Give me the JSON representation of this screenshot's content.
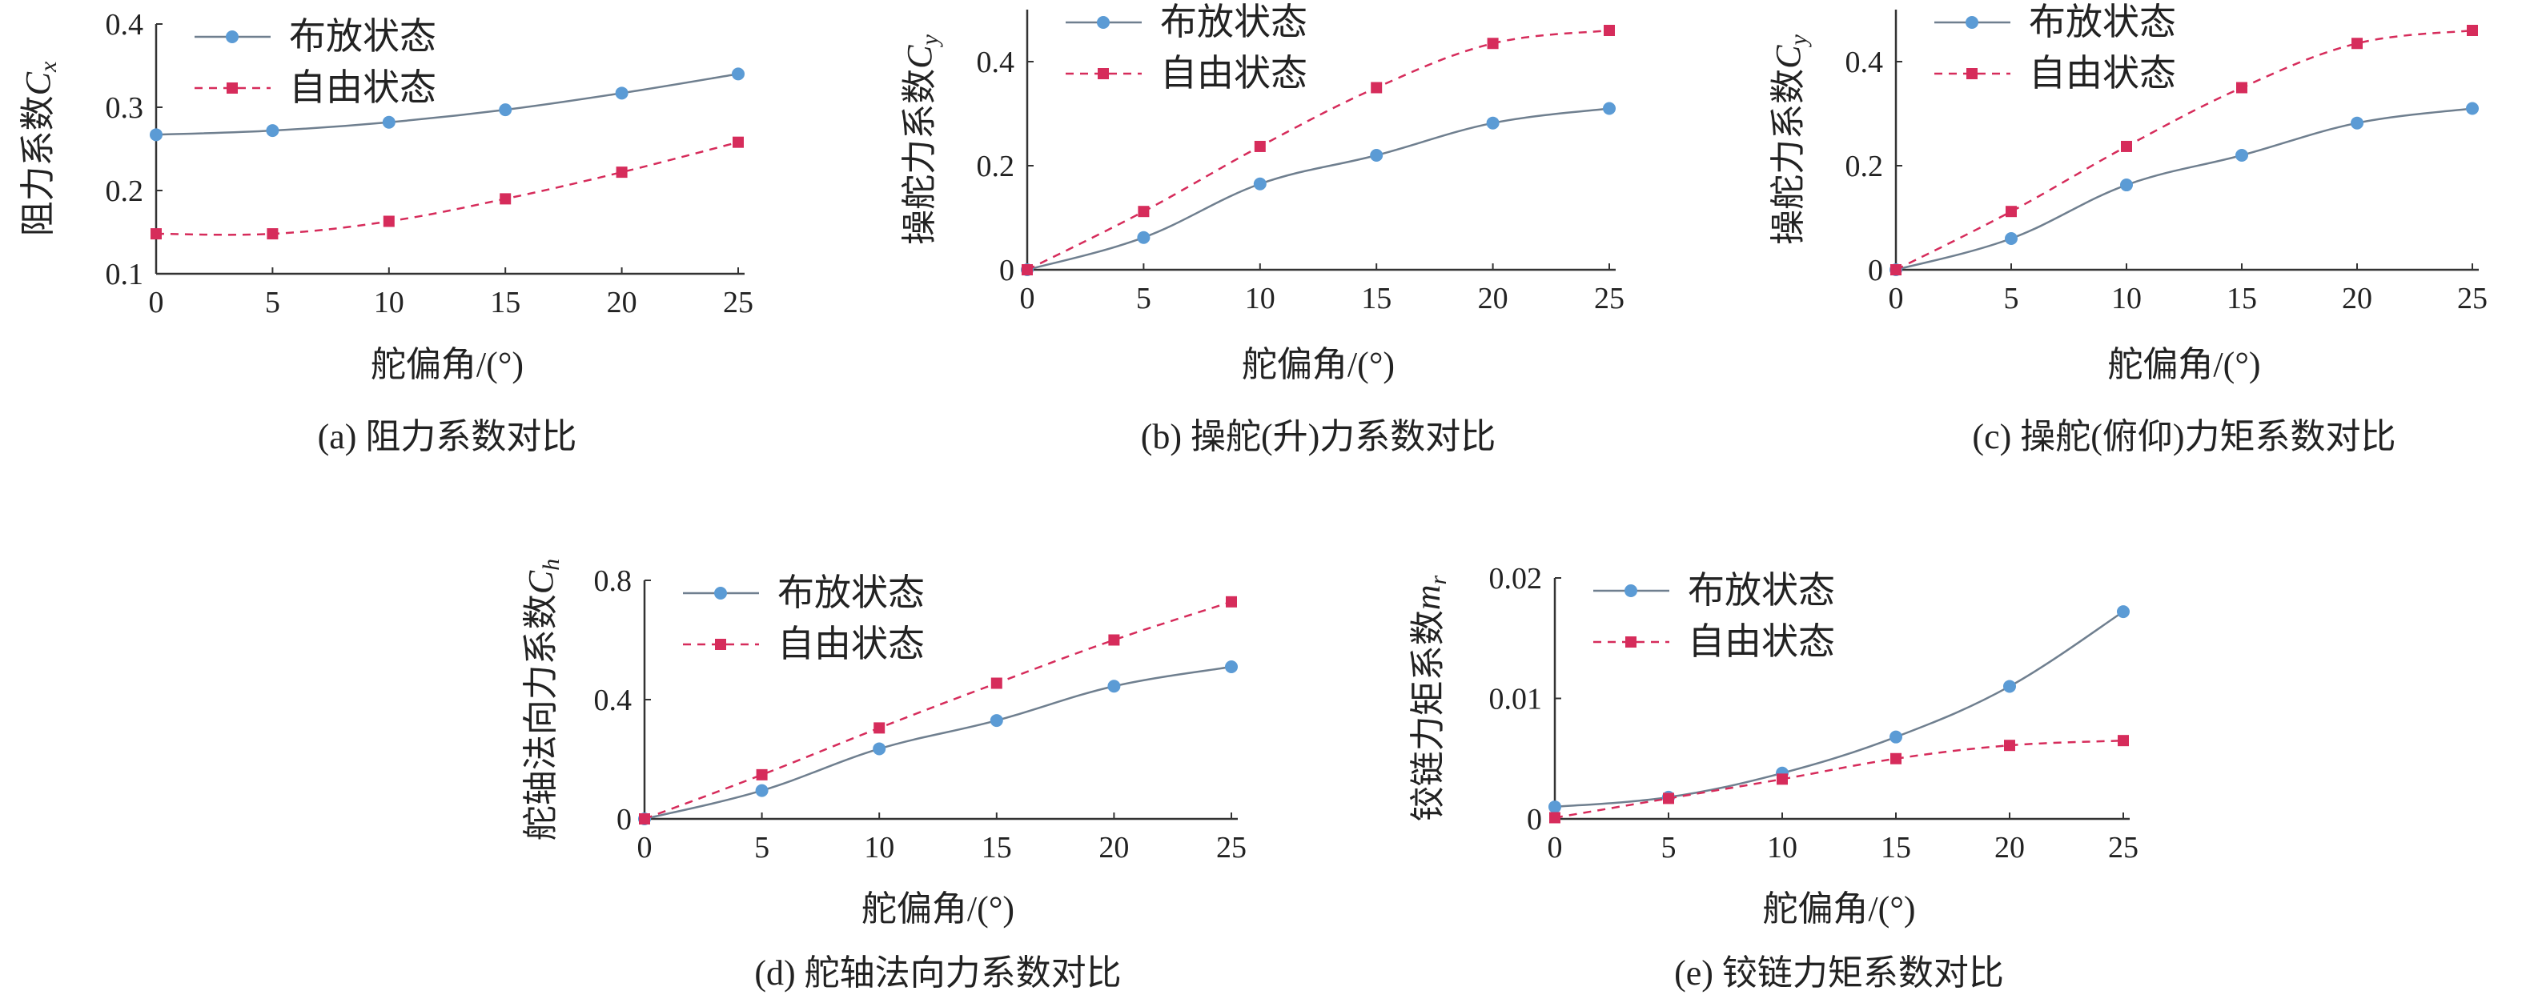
{
  "figure": {
    "xlabel": "舵偏角/(°)",
    "legend": [
      "布放状态",
      "自由状态"
    ],
    "colors": {
      "deployed": "#5b9bd5",
      "free": "#d62c5b",
      "axis": "#333333",
      "curve_deployed": "#6f7f8f"
    }
  },
  "chart_data": [
    {
      "type": "line",
      "caption": "(a) 阻力系数对比",
      "ylabel_text": "阻力系数",
      "ylabel_symbol": "C",
      "ylabel_sub": "x",
      "xlabel": "舵偏角/(°)",
      "x": [
        0,
        5,
        10,
        15,
        20,
        25
      ],
      "xticks": [
        "0",
        "5",
        "10",
        "15",
        "20",
        "25"
      ],
      "ylim": [
        0.1,
        0.4
      ],
      "yticks": [
        "0.1",
        "0.2",
        "0.3",
        "0.4"
      ],
      "legend_position": "top-left",
      "series": [
        {
          "name": "布放状态",
          "values": [
            0.267,
            0.272,
            0.282,
            0.297,
            0.317,
            0.34
          ]
        },
        {
          "name": "自由状态",
          "values": [
            0.148,
            0.148,
            0.163,
            0.19,
            0.222,
            0.258
          ]
        }
      ]
    },
    {
      "type": "line",
      "caption": "(b) 操舵(升)力系数对比",
      "ylabel_text": "操舵力系数",
      "ylabel_symbol": "C",
      "ylabel_sub": "y",
      "xlabel": "舵偏角/(°)",
      "x": [
        0,
        5,
        10,
        15,
        20,
        25
      ],
      "xticks": [
        "0",
        "5",
        "10",
        "15",
        "20",
        "25"
      ],
      "ylim": [
        0,
        0.5
      ],
      "yticks": [
        "0",
        "0.2",
        "0.4"
      ],
      "legend_position": "top-left",
      "series": [
        {
          "name": "布放状态",
          "values": [
            0,
            0.062,
            0.165,
            0.22,
            0.282,
            0.31
          ]
        },
        {
          "name": "自由状态",
          "values": [
            0,
            0.112,
            0.237,
            0.35,
            0.435,
            0.46
          ]
        }
      ]
    },
    {
      "type": "line",
      "caption": "(c) 操舵(俯仰)力矩系数对比",
      "ylabel_text": "操舵力系数",
      "ylabel_symbol": "C",
      "ylabel_sub": "y",
      "xlabel": "舵偏角/(°)",
      "x": [
        0,
        5,
        10,
        15,
        20,
        25
      ],
      "xticks": [
        "0",
        "5",
        "10",
        "15",
        "20",
        "25"
      ],
      "ylim": [
        0,
        0.5
      ],
      "yticks": [
        "0",
        "0.2",
        "0.4"
      ],
      "legend_position": "top-left",
      "series": [
        {
          "name": "布放状态",
          "values": [
            0,
            0.06,
            0.163,
            0.22,
            0.282,
            0.31
          ]
        },
        {
          "name": "自由状态",
          "values": [
            0,
            0.112,
            0.237,
            0.35,
            0.435,
            0.46
          ]
        }
      ]
    },
    {
      "type": "line",
      "caption": "(d) 舵轴法向力系数对比",
      "ylabel_text": "舵轴法向力系数",
      "ylabel_symbol": "C",
      "ylabel_sub": "h",
      "xlabel": "舵偏角/(°)",
      "x": [
        0,
        5,
        10,
        15,
        20,
        25
      ],
      "xticks": [
        "0",
        "5",
        "10",
        "15",
        "20",
        "25"
      ],
      "ylim": [
        0,
        0.8
      ],
      "yticks": [
        "0",
        "0.4",
        "0.8"
      ],
      "legend_position": "top-left",
      "series": [
        {
          "name": "布放状态",
          "values": [
            0,
            0.095,
            0.235,
            0.33,
            0.445,
            0.51
          ]
        },
        {
          "name": "自由状态",
          "values": [
            0,
            0.148,
            0.305,
            0.455,
            0.6,
            0.728
          ]
        }
      ]
    },
    {
      "type": "line",
      "caption": "(e) 铰链力矩系数对比",
      "ylabel_text": "铰链力矩系数",
      "ylabel_symbol": "m",
      "ylabel_sub": "r",
      "xlabel": "舵偏角/(°)",
      "x": [
        0,
        5,
        10,
        15,
        20,
        25
      ],
      "xticks": [
        "0",
        "5",
        "10",
        "15",
        "20",
        "25"
      ],
      "ylim": [
        0,
        0.02
      ],
      "yticks": [
        "0",
        "0.01",
        "0.02"
      ],
      "legend_position": "top-left",
      "series": [
        {
          "name": "布放状态",
          "values": [
            0.001,
            0.0018,
            0.0038,
            0.0068,
            0.011,
            0.0172
          ]
        },
        {
          "name": "自由状态",
          "values": [
            0.0001,
            0.0017,
            0.0033,
            0.005,
            0.0061,
            0.0065
          ]
        }
      ]
    }
  ]
}
